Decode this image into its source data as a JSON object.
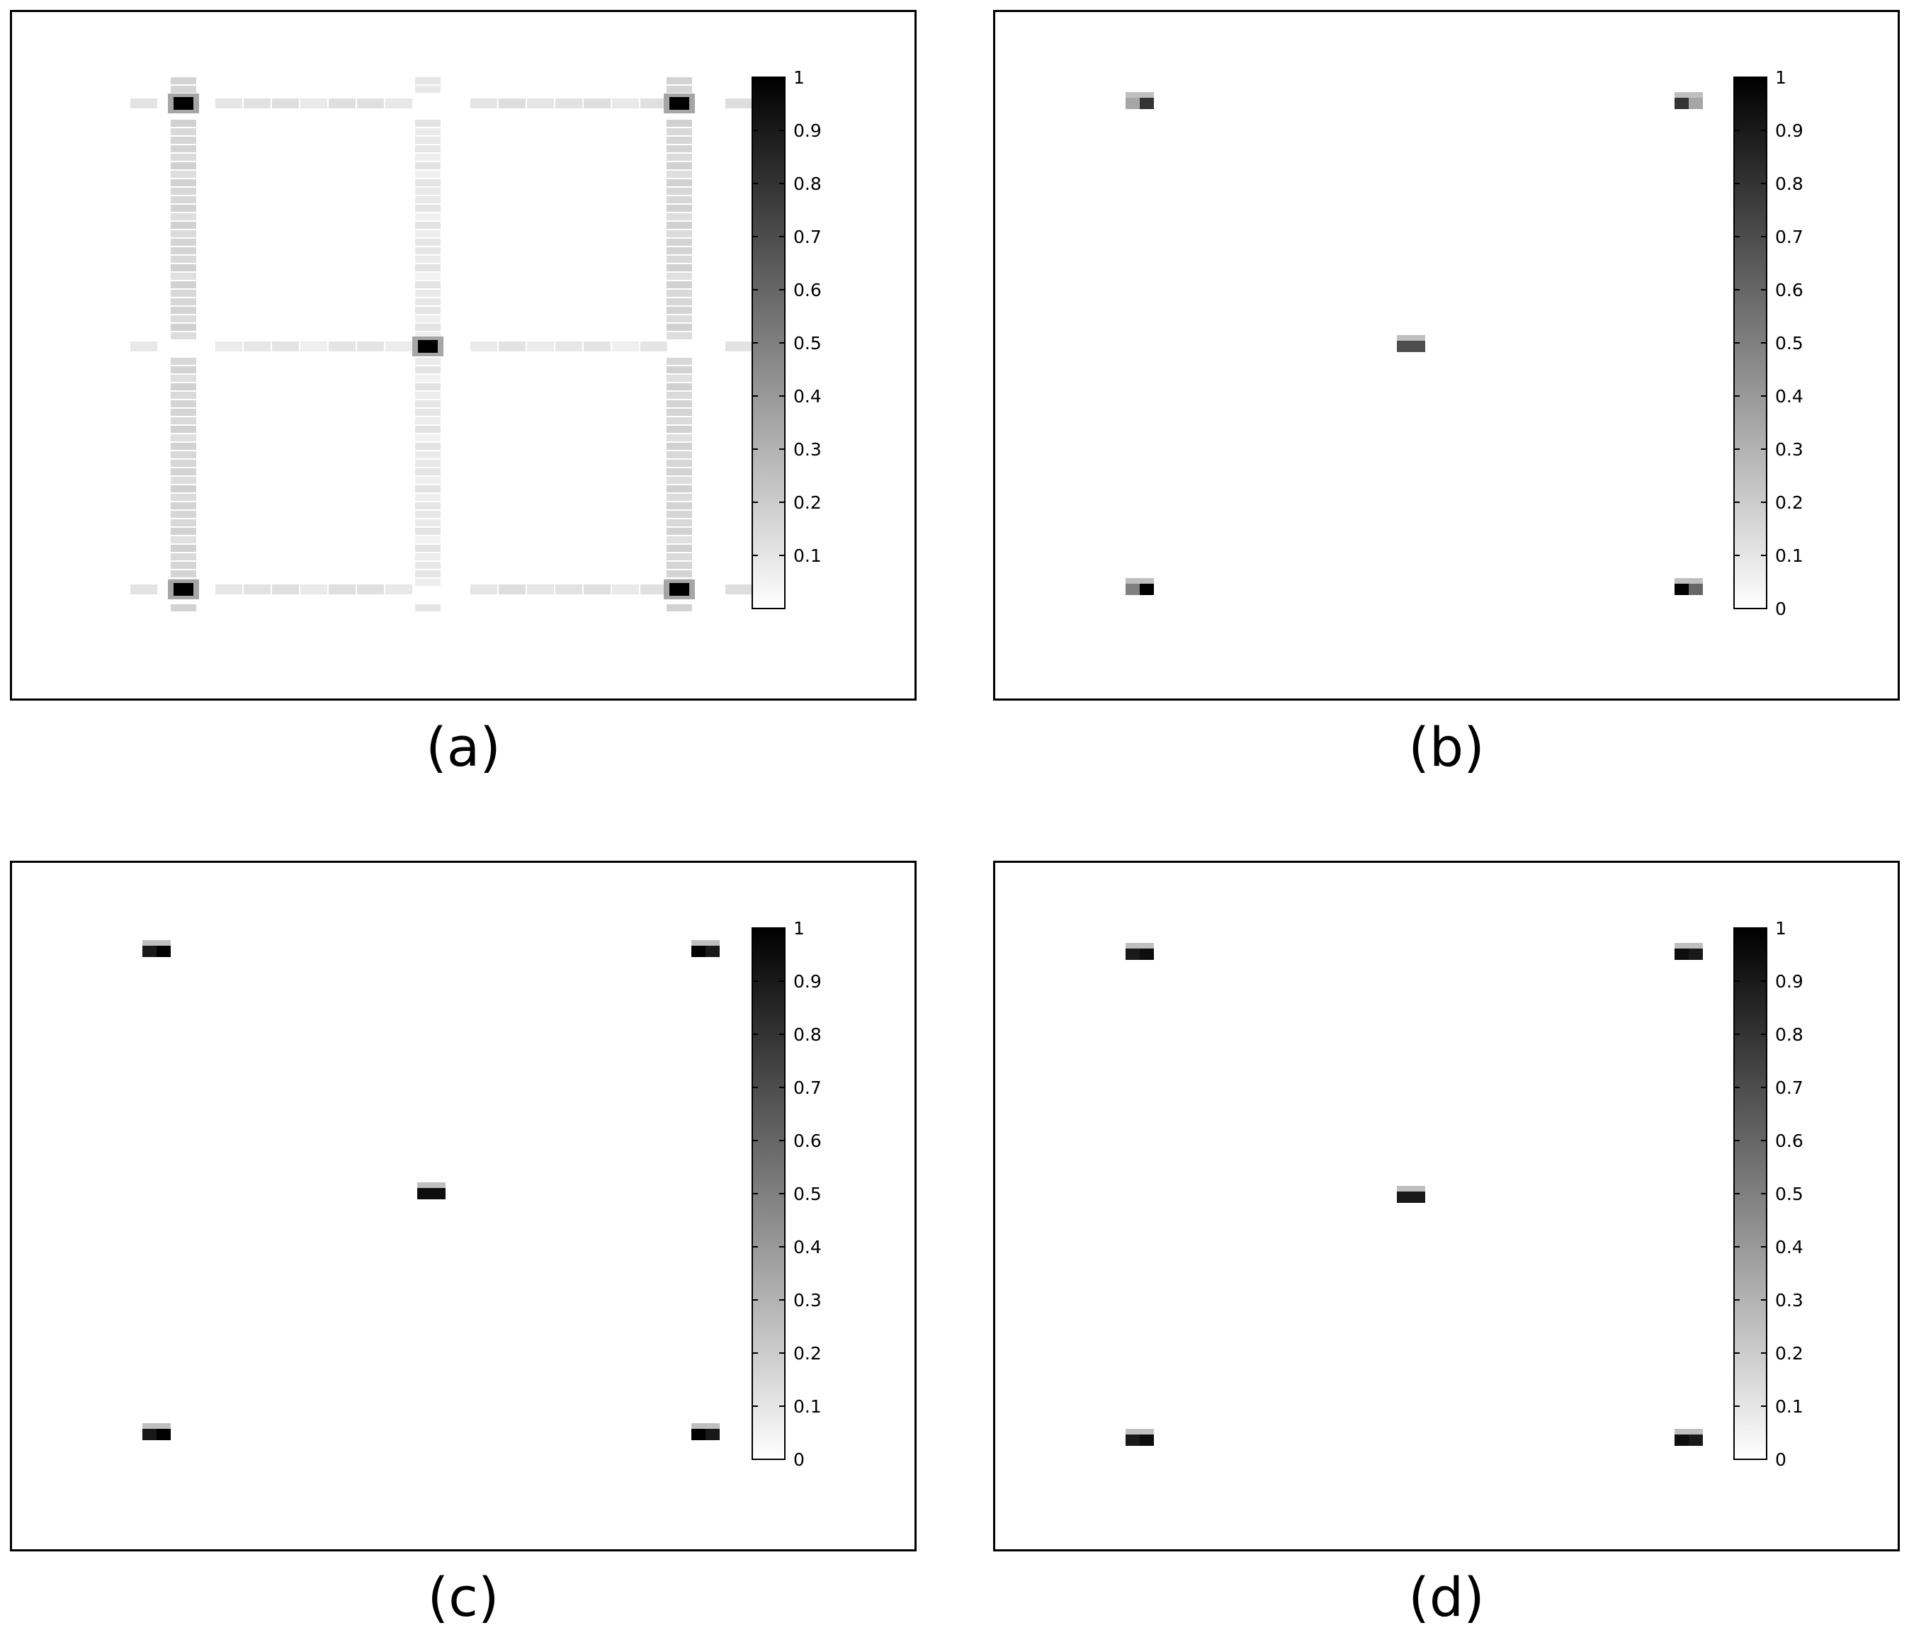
{
  "colors": {
    "frame": "#000000",
    "background": "#ffffff",
    "colormap": "gray-reversed (0 = white, 1 = black)"
  },
  "chart_data": [
    {
      "type": "heatmap",
      "caption": "(a)",
      "colorbar": {
        "range": [
          0,
          1
        ],
        "ticks": [
          "0.1",
          "0.2",
          "0.3",
          "0.4",
          "0.5",
          "0.6",
          "0.7",
          "0.8",
          "0.9",
          "1"
        ]
      },
      "grid": false,
      "axes_visible": false,
      "peaks": [
        {
          "row": "upper",
          "col": "left",
          "value": 1.0
        },
        {
          "row": "upper",
          "col": "right",
          "value": 1.0
        },
        {
          "row": "middle",
          "col": "center",
          "value": 1.0
        },
        {
          "row": "lower",
          "col": "left",
          "value": 1.0
        },
        {
          "row": "lower",
          "col": "right",
          "value": 1.0
        }
      ],
      "background_level": "low diffuse values (< 0.2) along the rows and columns through each peak"
    },
    {
      "type": "heatmap",
      "caption": "(b)",
      "colorbar": {
        "range": [
          0,
          1
        ],
        "ticks": [
          "0",
          "0.1",
          "0.2",
          "0.3",
          "0.4",
          "0.5",
          "0.6",
          "0.7",
          "0.8",
          "0.9",
          "1"
        ]
      },
      "grid": false,
      "axes_visible": false,
      "peaks": [
        {
          "row": "upper",
          "col": "left",
          "cells": [
            0.35,
            0.8
          ]
        },
        {
          "row": "upper",
          "col": "right",
          "cells": [
            0.8,
            0.35
          ]
        },
        {
          "row": "middle",
          "col": "center",
          "cells": [
            0.7,
            0.7
          ]
        },
        {
          "row": "lower",
          "col": "left",
          "cells": [
            0.5,
            1.0
          ]
        },
        {
          "row": "lower",
          "col": "right",
          "cells": [
            1.0,
            0.6
          ]
        }
      ]
    },
    {
      "type": "heatmap",
      "caption": "(c)",
      "colorbar": {
        "range": [
          0,
          1
        ],
        "ticks": [
          "0",
          "0.1",
          "0.2",
          "0.3",
          "0.4",
          "0.5",
          "0.6",
          "0.7",
          "0.8",
          "0.9",
          "1"
        ]
      },
      "grid": false,
      "axes_visible": false,
      "peaks": [
        {
          "row": "upper",
          "col": "left",
          "cells": [
            0.9,
            1.0
          ]
        },
        {
          "row": "upper",
          "col": "right",
          "cells": [
            1.0,
            0.9
          ]
        },
        {
          "row": "middle",
          "col": "center",
          "cells": [
            0.95,
            0.95
          ]
        },
        {
          "row": "lower",
          "col": "left",
          "cells": [
            0.9,
            1.0
          ]
        },
        {
          "row": "lower",
          "col": "right",
          "cells": [
            1.0,
            0.9
          ]
        }
      ]
    },
    {
      "type": "heatmap",
      "caption": "(d)",
      "colorbar": {
        "range": [
          0,
          1
        ],
        "ticks": [
          "0",
          "0.1",
          "0.2",
          "0.3",
          "0.4",
          "0.5",
          "0.6",
          "0.7",
          "0.8",
          "0.9",
          "1"
        ]
      },
      "grid": false,
      "axes_visible": false,
      "peaks": [
        {
          "row": "upper",
          "col": "left",
          "cells": [
            0.9,
            0.95
          ]
        },
        {
          "row": "upper",
          "col": "right",
          "cells": [
            0.95,
            0.9
          ]
        },
        {
          "row": "middle",
          "col": "center",
          "cells": [
            0.9,
            0.9
          ]
        },
        {
          "row": "lower",
          "col": "left",
          "cells": [
            0.9,
            0.95
          ]
        },
        {
          "row": "lower",
          "col": "right",
          "cells": [
            0.95,
            0.9
          ]
        }
      ]
    }
  ]
}
